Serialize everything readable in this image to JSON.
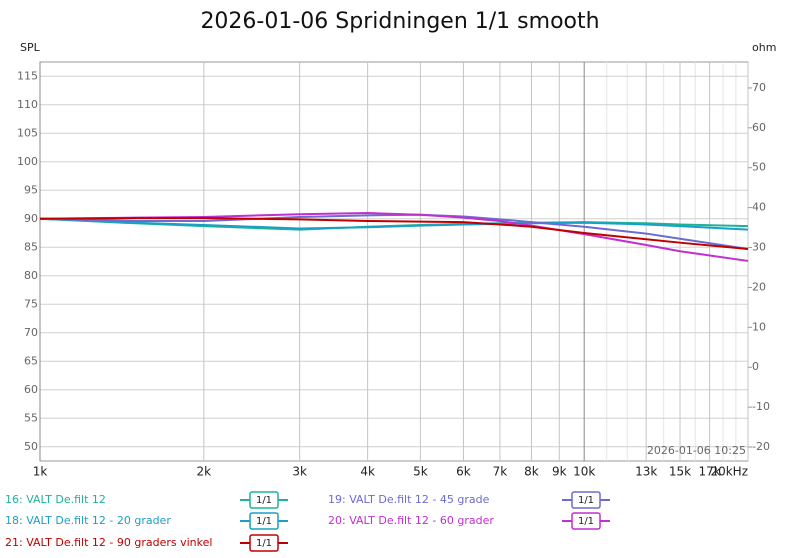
{
  "chart_data": {
    "type": "line",
    "title": "2026-01-06 Spridningen 1/1 smooth",
    "y_label": "SPL",
    "y2_label": "ohm",
    "annotation": "2026-01-06 10:25",
    "log_x": true,
    "grid": true,
    "xlim": [
      1000,
      20000
    ],
    "xticks": [
      {
        "value": 1000,
        "label": "1k"
      },
      {
        "value": 2000,
        "label": "2k"
      },
      {
        "value": 3000,
        "label": "3k"
      },
      {
        "value": 4000,
        "label": "4k"
      },
      {
        "value": 5000,
        "label": "5k"
      },
      {
        "value": 6000,
        "label": "6k"
      },
      {
        "value": 7000,
        "label": "7k"
      },
      {
        "value": 8000,
        "label": "8k"
      },
      {
        "value": 9000,
        "label": "9k"
      },
      {
        "value": 10000,
        "label": "10k"
      },
      {
        "value": 13000,
        "label": "13k"
      },
      {
        "value": 15000,
        "label": "15k"
      },
      {
        "value": 17000,
        "label": "17k"
      },
      {
        "value": 20000,
        "label": "20kHz"
      }
    ],
    "xminor": [
      11000,
      12000,
      14000,
      16000,
      18000,
      19000
    ],
    "ylim": [
      47.5,
      117.5
    ],
    "yticks": [
      50,
      55,
      60,
      65,
      70,
      75,
      80,
      85,
      90,
      95,
      100,
      105,
      110,
      115
    ],
    "y2lim": [
      -23.5,
      76.5
    ],
    "y2ticks": [
      -20,
      -10,
      0,
      10,
      20,
      30,
      40,
      50,
      60,
      70
    ],
    "x": [
      1000,
      1500,
      2000,
      3000,
      4000,
      5000,
      6000,
      7000,
      8000,
      10000,
      13000,
      15000,
      20000
    ],
    "series": [
      {
        "name": "16: VALT De.filt 12",
        "smoothing": "1/1",
        "color": "#1fb29a",
        "values": [
          90,
          89.2,
          88.7,
          88.1,
          88.6,
          88.9,
          89.1,
          89.2,
          89.3,
          89.4,
          89.2,
          89.0,
          88.7
        ]
      },
      {
        "name": "18: VALT De.filt 12 - 20 grader",
        "smoothing": "1/1",
        "color": "#1c9fc4",
        "values": [
          90,
          89.3,
          88.9,
          88.3,
          88.5,
          88.8,
          89.0,
          89.1,
          89.2,
          89.3,
          89.0,
          88.7,
          88.1
        ]
      },
      {
        "name": "19: VALT De.filt 12 - 45 grade",
        "smoothing": "1/1",
        "color": "#6b6bd0",
        "values": [
          90,
          89.6,
          89.6,
          90.3,
          90.6,
          90.7,
          90.4,
          89.9,
          89.4,
          88.6,
          87.4,
          86.5,
          84.7
        ]
      },
      {
        "name": "20: VALT De.filt 12 - 60 grader",
        "smoothing": "1/1",
        "color": "#c22fd0",
        "values": [
          90,
          90.2,
          90.3,
          90.8,
          91.0,
          90.7,
          90.2,
          89.6,
          88.8,
          87.3,
          85.4,
          84.3,
          82.6
        ]
      },
      {
        "name": "21: VALT De.filt 12 - 90 graders vinkel",
        "smoothing": "1/1",
        "color": "#c00000",
        "values": [
          90,
          90.1,
          90.1,
          89.9,
          89.6,
          89.5,
          89.4,
          89.0,
          88.6,
          87.5,
          86.4,
          85.8,
          84.7
        ]
      }
    ]
  }
}
